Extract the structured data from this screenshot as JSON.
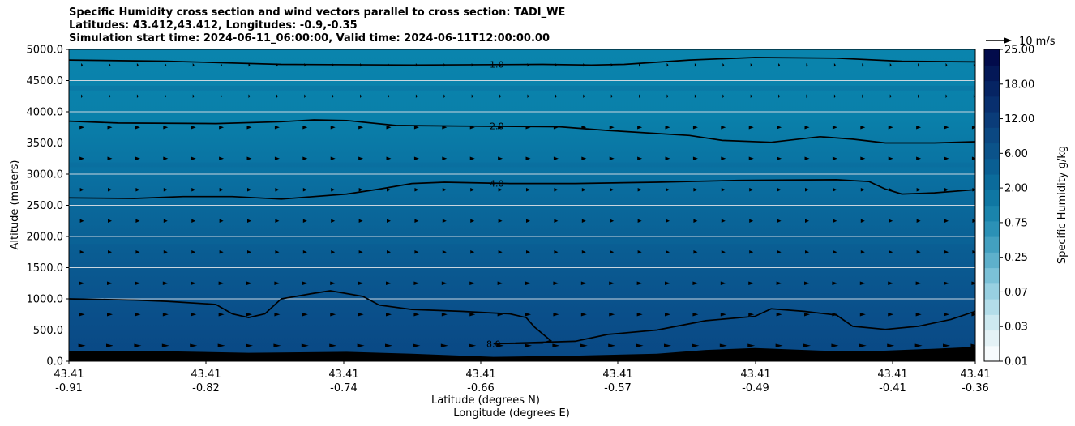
{
  "chart_data": {
    "type": "contour",
    "title_lines": [
      "Specific Humidity cross section and wind vectors parallel to cross section: TADI_WE",
      "Latitudes: 43.412,43.412, Longitudes: -0.9,-0.35",
      "Simulation start time: 2024-06-11_06:00:00, Valid time: 2024-06-11T12:00:00.00"
    ],
    "ylabel": "Altitude (meters)",
    "xlabel_lat": "Latitude (degrees N)",
    "xlabel_lon": "Longitude (degrees E)",
    "ylim": [
      0,
      5000
    ],
    "yticks": [
      "0.0",
      "500.0",
      "1000.0",
      "1500.0",
      "2000.0",
      "2500.0",
      "3000.0",
      "3500.0",
      "4000.0",
      "4500.0",
      "5000.0"
    ],
    "xticks": [
      {
        "lat": "43.41",
        "lon": "-0.91"
      },
      {
        "lat": "43.41",
        "lon": "-0.82"
      },
      {
        "lat": "43.41",
        "lon": "-0.74"
      },
      {
        "lat": "43.41",
        "lon": "-0.66"
      },
      {
        "lat": "43.41",
        "lon": "-0.57"
      },
      {
        "lat": "43.41",
        "lon": "-0.49"
      },
      {
        "lat": "43.41",
        "lon": "-0.41"
      },
      {
        "lat": "43.41",
        "lon": "-0.36"
      }
    ],
    "xlim": [
      -0.91,
      -0.355
    ],
    "grid": "horizontal",
    "contours": [
      {
        "label": "1.0",
        "label_at": -0.648,
        "points": [
          [
            -0.91,
            4830
          ],
          [
            -0.85,
            4810
          ],
          [
            -0.78,
            4760
          ],
          [
            -0.7,
            4750
          ],
          [
            -0.62,
            4760
          ],
          [
            -0.59,
            4750
          ],
          [
            -0.57,
            4760
          ],
          [
            -0.53,
            4830
          ],
          [
            -0.49,
            4870
          ],
          [
            -0.44,
            4860
          ],
          [
            -0.4,
            4810
          ],
          [
            -0.355,
            4800
          ]
        ]
      },
      {
        "label": "2.0",
        "label_at": -0.648,
        "points": [
          [
            -0.91,
            3850
          ],
          [
            -0.88,
            3820
          ],
          [
            -0.82,
            3810
          ],
          [
            -0.78,
            3840
          ],
          [
            -0.76,
            3870
          ],
          [
            -0.74,
            3860
          ],
          [
            -0.71,
            3780
          ],
          [
            -0.67,
            3770
          ],
          [
            -0.61,
            3760
          ],
          [
            -0.58,
            3700
          ],
          [
            -0.53,
            3620
          ],
          [
            -0.51,
            3540
          ],
          [
            -0.48,
            3510
          ],
          [
            -0.45,
            3600
          ],
          [
            -0.43,
            3560
          ],
          [
            -0.41,
            3500
          ],
          [
            -0.38,
            3500
          ],
          [
            -0.355,
            3520
          ]
        ]
      },
      {
        "label": "4.0",
        "label_at": -0.648,
        "points": [
          [
            -0.91,
            2620
          ],
          [
            -0.87,
            2610
          ],
          [
            -0.84,
            2640
          ],
          [
            -0.81,
            2640
          ],
          [
            -0.78,
            2600
          ],
          [
            -0.74,
            2680
          ],
          [
            -0.72,
            2760
          ],
          [
            -0.7,
            2850
          ],
          [
            -0.68,
            2870
          ],
          [
            -0.64,
            2850
          ],
          [
            -0.6,
            2850
          ],
          [
            -0.55,
            2870
          ],
          [
            -0.5,
            2900
          ],
          [
            -0.44,
            2910
          ],
          [
            -0.42,
            2880
          ],
          [
            -0.41,
            2760
          ],
          [
            -0.4,
            2680
          ],
          [
            -0.38,
            2700
          ],
          [
            -0.355,
            2750
          ]
        ]
      },
      {
        "label": "8.0",
        "label_at": -0.65,
        "points": [
          [
            -0.91,
            1000
          ],
          [
            -0.87,
            980
          ],
          [
            -0.85,
            960
          ],
          [
            -0.82,
            910
          ],
          [
            -0.81,
            760
          ],
          [
            -0.8,
            700
          ],
          [
            -0.79,
            760
          ],
          [
            -0.78,
            1000
          ],
          [
            -0.76,
            1090
          ],
          [
            -0.75,
            1130
          ],
          [
            -0.73,
            1040
          ],
          [
            -0.72,
            900
          ],
          [
            -0.7,
            830
          ],
          [
            -0.67,
            800
          ],
          [
            -0.64,
            760
          ],
          [
            -0.63,
            700
          ],
          [
            -0.625,
            550
          ],
          [
            -0.615,
            330
          ],
          [
            -0.62,
            290
          ],
          [
            -0.65,
            280
          ],
          [
            -0.6,
            320
          ],
          [
            -0.58,
            430
          ],
          [
            -0.55,
            500
          ],
          [
            -0.52,
            650
          ],
          [
            -0.49,
            720
          ],
          [
            -0.48,
            840
          ],
          [
            -0.46,
            800
          ],
          [
            -0.44,
            740
          ],
          [
            -0.43,
            560
          ],
          [
            -0.41,
            510
          ],
          [
            -0.39,
            560
          ],
          [
            -0.37,
            670
          ],
          [
            -0.355,
            800
          ]
        ]
      }
    ],
    "terrain": [
      [
        -0.91,
        160
      ],
      [
        -0.85,
        160
      ],
      [
        -0.8,
        135
      ],
      [
        -0.74,
        150
      ],
      [
        -0.7,
        120
      ],
      [
        -0.65,
        70
      ],
      [
        -0.6,
        90
      ],
      [
        -0.55,
        120
      ],
      [
        -0.52,
        180
      ],
      [
        -0.49,
        210
      ],
      [
        -0.45,
        170
      ],
      [
        -0.42,
        160
      ],
      [
        -0.38,
        200
      ],
      [
        -0.355,
        230
      ]
    ],
    "colorbar": {
      "label": "Specific Humidity g/kg",
      "tick_labels": [
        "0.01",
        "0.03",
        "0.07",
        "0.25",
        "0.75",
        "2.00",
        "6.00",
        "12.00",
        "18.00",
        "25.00"
      ],
      "colors": [
        "#f7fbfd",
        "#e4f2f6",
        "#cde9f0",
        "#b3dde9",
        "#98d0e1",
        "#7bc1d7",
        "#5eb0cb",
        "#43a0c0",
        "#2b91b6",
        "#1a84ac",
        "#0f77a3",
        "#0b6b9b",
        "#0a5f93",
        "#0b538a",
        "#0b4882",
        "#0a3c79",
        "#082f6e",
        "#062463",
        "#041857",
        "#020b4b"
      ]
    },
    "wind_key": "10 m/s"
  }
}
